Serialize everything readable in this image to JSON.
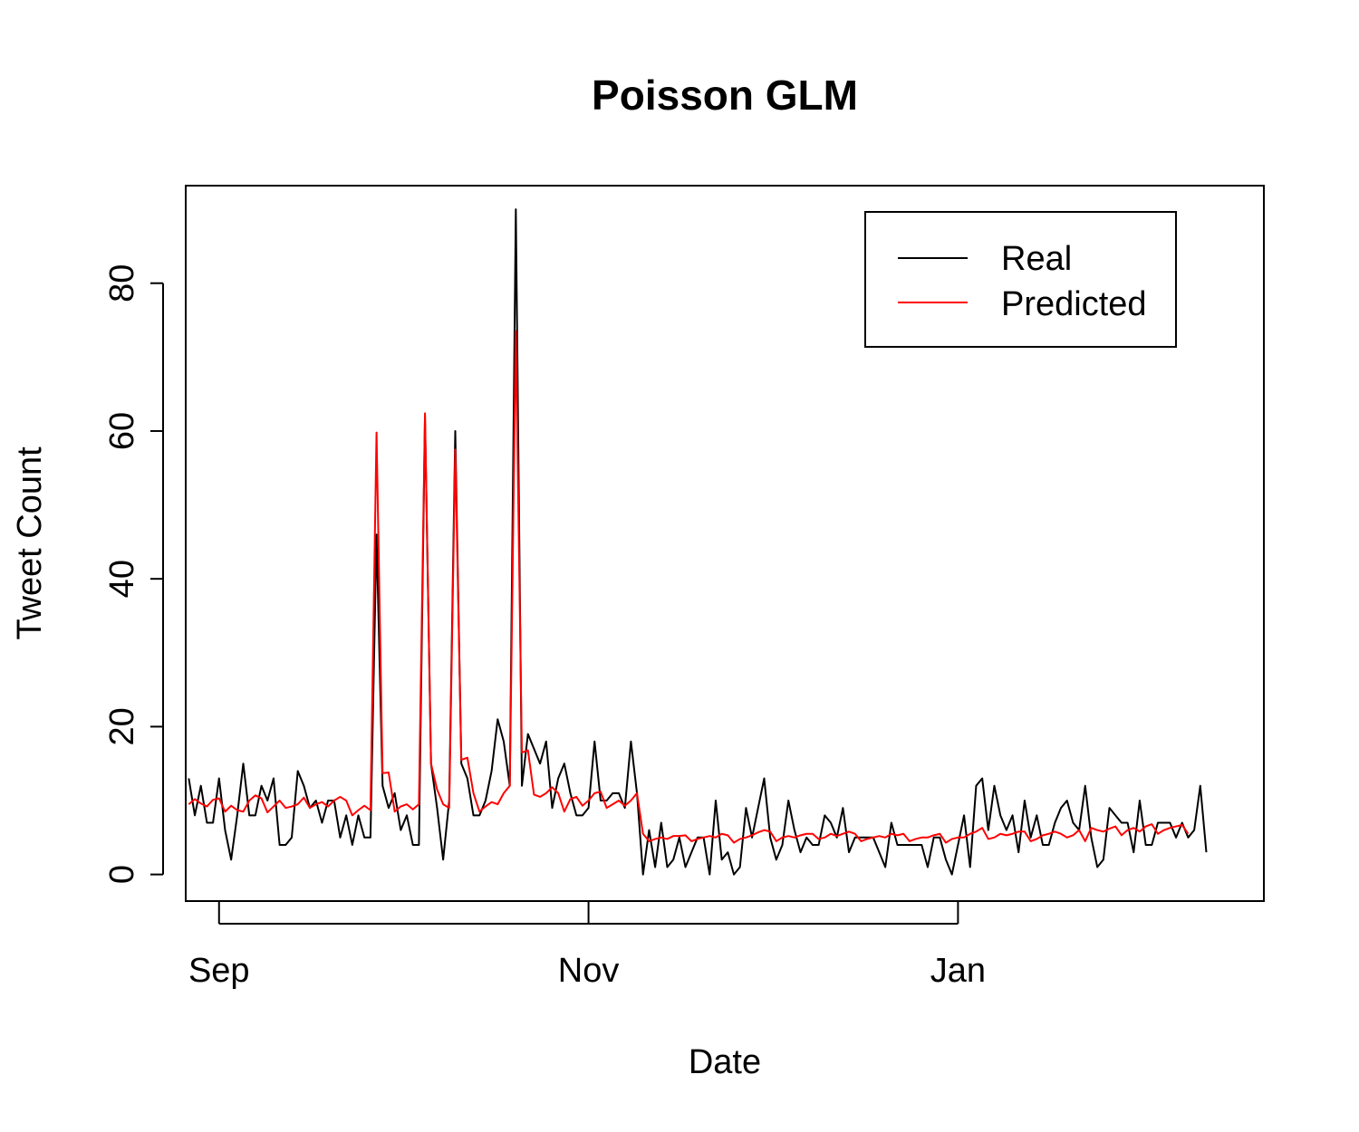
{
  "chart_data": {
    "type": "line",
    "title": "Poisson GLM",
    "xlabel": "Date",
    "ylabel": "Tweet Count",
    "ylim": [
      -3.6,
      93.2
    ],
    "yticks": [
      0,
      20,
      40,
      60,
      80
    ],
    "xlim": [
      -5.5,
      172.5
    ],
    "x_axis": {
      "unit": "days since Sep 1",
      "ticks": [
        {
          "label": "Sep",
          "day": 0
        },
        {
          "label": "Nov",
          "day": 61
        },
        {
          "label": "Jan",
          "day": 122
        }
      ]
    },
    "x_start_day": -5,
    "grid": false,
    "legend": {
      "position": "top-right"
    },
    "series": [
      {
        "name": "Real",
        "color": "#000000",
        "values": [
          13,
          8,
          12,
          7,
          7,
          13,
          6,
          2,
          8,
          15,
          8,
          8,
          12,
          10,
          13,
          4,
          4,
          5,
          14,
          12,
          9,
          10,
          7,
          10,
          10,
          5,
          8,
          4,
          8,
          5,
          5,
          46,
          12,
          9,
          11,
          6,
          8,
          4,
          4,
          62,
          15,
          9,
          2,
          10,
          60,
          15,
          13,
          8,
          8,
          10,
          14,
          21,
          18,
          12,
          90,
          12,
          19,
          17,
          15,
          18,
          9,
          13,
          15,
          11,
          8,
          8,
          9,
          18,
          10,
          10,
          11,
          11,
          9,
          18,
          11,
          0,
          6,
          1,
          7,
          1,
          2,
          5,
          1,
          3,
          5,
          5,
          0,
          10,
          2,
          3,
          0,
          1,
          9,
          5,
          9,
          13,
          5,
          2,
          4,
          10,
          6,
          3,
          5,
          4,
          4,
          8,
          7,
          5,
          9,
          3,
          5,
          5,
          5,
          5,
          3,
          1,
          7,
          4,
          4,
          4,
          4,
          4,
          1,
          5,
          5,
          2,
          0,
          4,
          8,
          1,
          12,
          13,
          6,
          12,
          8,
          6,
          8,
          3,
          10,
          5,
          8,
          4,
          4,
          7,
          9,
          10,
          7,
          6,
          12,
          5,
          1,
          2,
          9,
          8,
          7,
          7,
          3,
          10,
          4,
          4,
          7,
          7,
          7,
          5,
          7,
          5,
          6,
          12,
          3
        ]
      },
      {
        "name": "Predicted",
        "color": "#ff0000",
        "values": [
          9.5,
          10.2,
          9.6,
          9.2,
          10.1,
          10.3,
          8.5,
          9.3,
          8.7,
          8.5,
          10,
          10.7,
          10.3,
          8.4,
          9.2,
          10,
          9,
          9.2,
          9.5,
          10.4,
          9,
          9.5,
          9.8,
          9.2,
          10,
          10.5,
          10,
          8,
          8.7,
          9.3,
          8.7,
          59.8,
          13.7,
          13.8,
          8.5,
          9.2,
          9.5,
          8.8,
          9.5,
          62.4,
          15,
          11.5,
          9.5,
          9,
          57.5,
          15.5,
          15.8,
          11,
          8.5,
          9.2,
          9.8,
          9.5,
          11,
          12,
          73.5,
          16.5,
          16.8,
          10.8,
          10.5,
          11,
          11.8,
          11,
          8.5,
          10.2,
          10.5,
          9.3,
          10,
          11,
          11.2,
          9,
          9.5,
          10,
          9.3,
          10,
          11,
          5.5,
          4.5,
          4.8,
          5,
          4.8,
          5.2,
          5.2,
          5.3,
          4.5,
          4.8,
          5,
          5.2,
          5,
          5.5,
          5.3,
          4.3,
          4.8,
          5,
          5.3,
          5.7,
          6,
          5.8,
          4.5,
          5,
          5.2,
          5,
          5.3,
          5.5,
          5.5,
          4.8,
          5,
          5.5,
          5.2,
          5.5,
          5.8,
          5.5,
          4.5,
          4.8,
          5,
          5.2,
          5,
          5.5,
          5.3,
          5.5,
          4.5,
          4.8,
          5,
          5,
          5.3,
          5.5,
          4.3,
          4.8,
          5,
          5,
          5.5,
          5.8,
          6.3,
          4.8,
          5,
          5.5,
          5.3,
          5.5,
          5.8,
          5.8,
          4.5,
          4.8,
          5.3,
          5.5,
          5.8,
          5.5,
          5,
          5.3,
          6,
          4.5,
          6.3,
          6,
          5.8,
          6.2,
          6.5,
          5.3,
          6,
          6.3,
          5.8,
          6.5,
          6.8,
          5.5,
          6,
          6.3,
          6.5,
          6.7,
          5.5
        ]
      }
    ]
  }
}
